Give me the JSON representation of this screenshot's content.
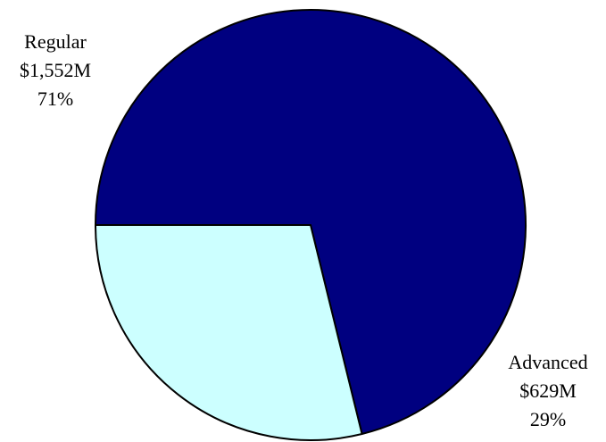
{
  "chart_data": {
    "type": "pie",
    "title": "",
    "start_angle_deg": 180,
    "direction": "clockwise",
    "slices": [
      {
        "name": "Regular",
        "value": 1552,
        "value_label": "$1,552M",
        "percent_label": "71%",
        "color": "#000080",
        "label_position": "top-left"
      },
      {
        "name": "Advanced",
        "value": 629,
        "value_label": "$629M",
        "percent_label": "29%",
        "color": "#ccffff",
        "label_position": "bottom-right"
      }
    ],
    "border_color": "#000000",
    "legend": "none"
  }
}
